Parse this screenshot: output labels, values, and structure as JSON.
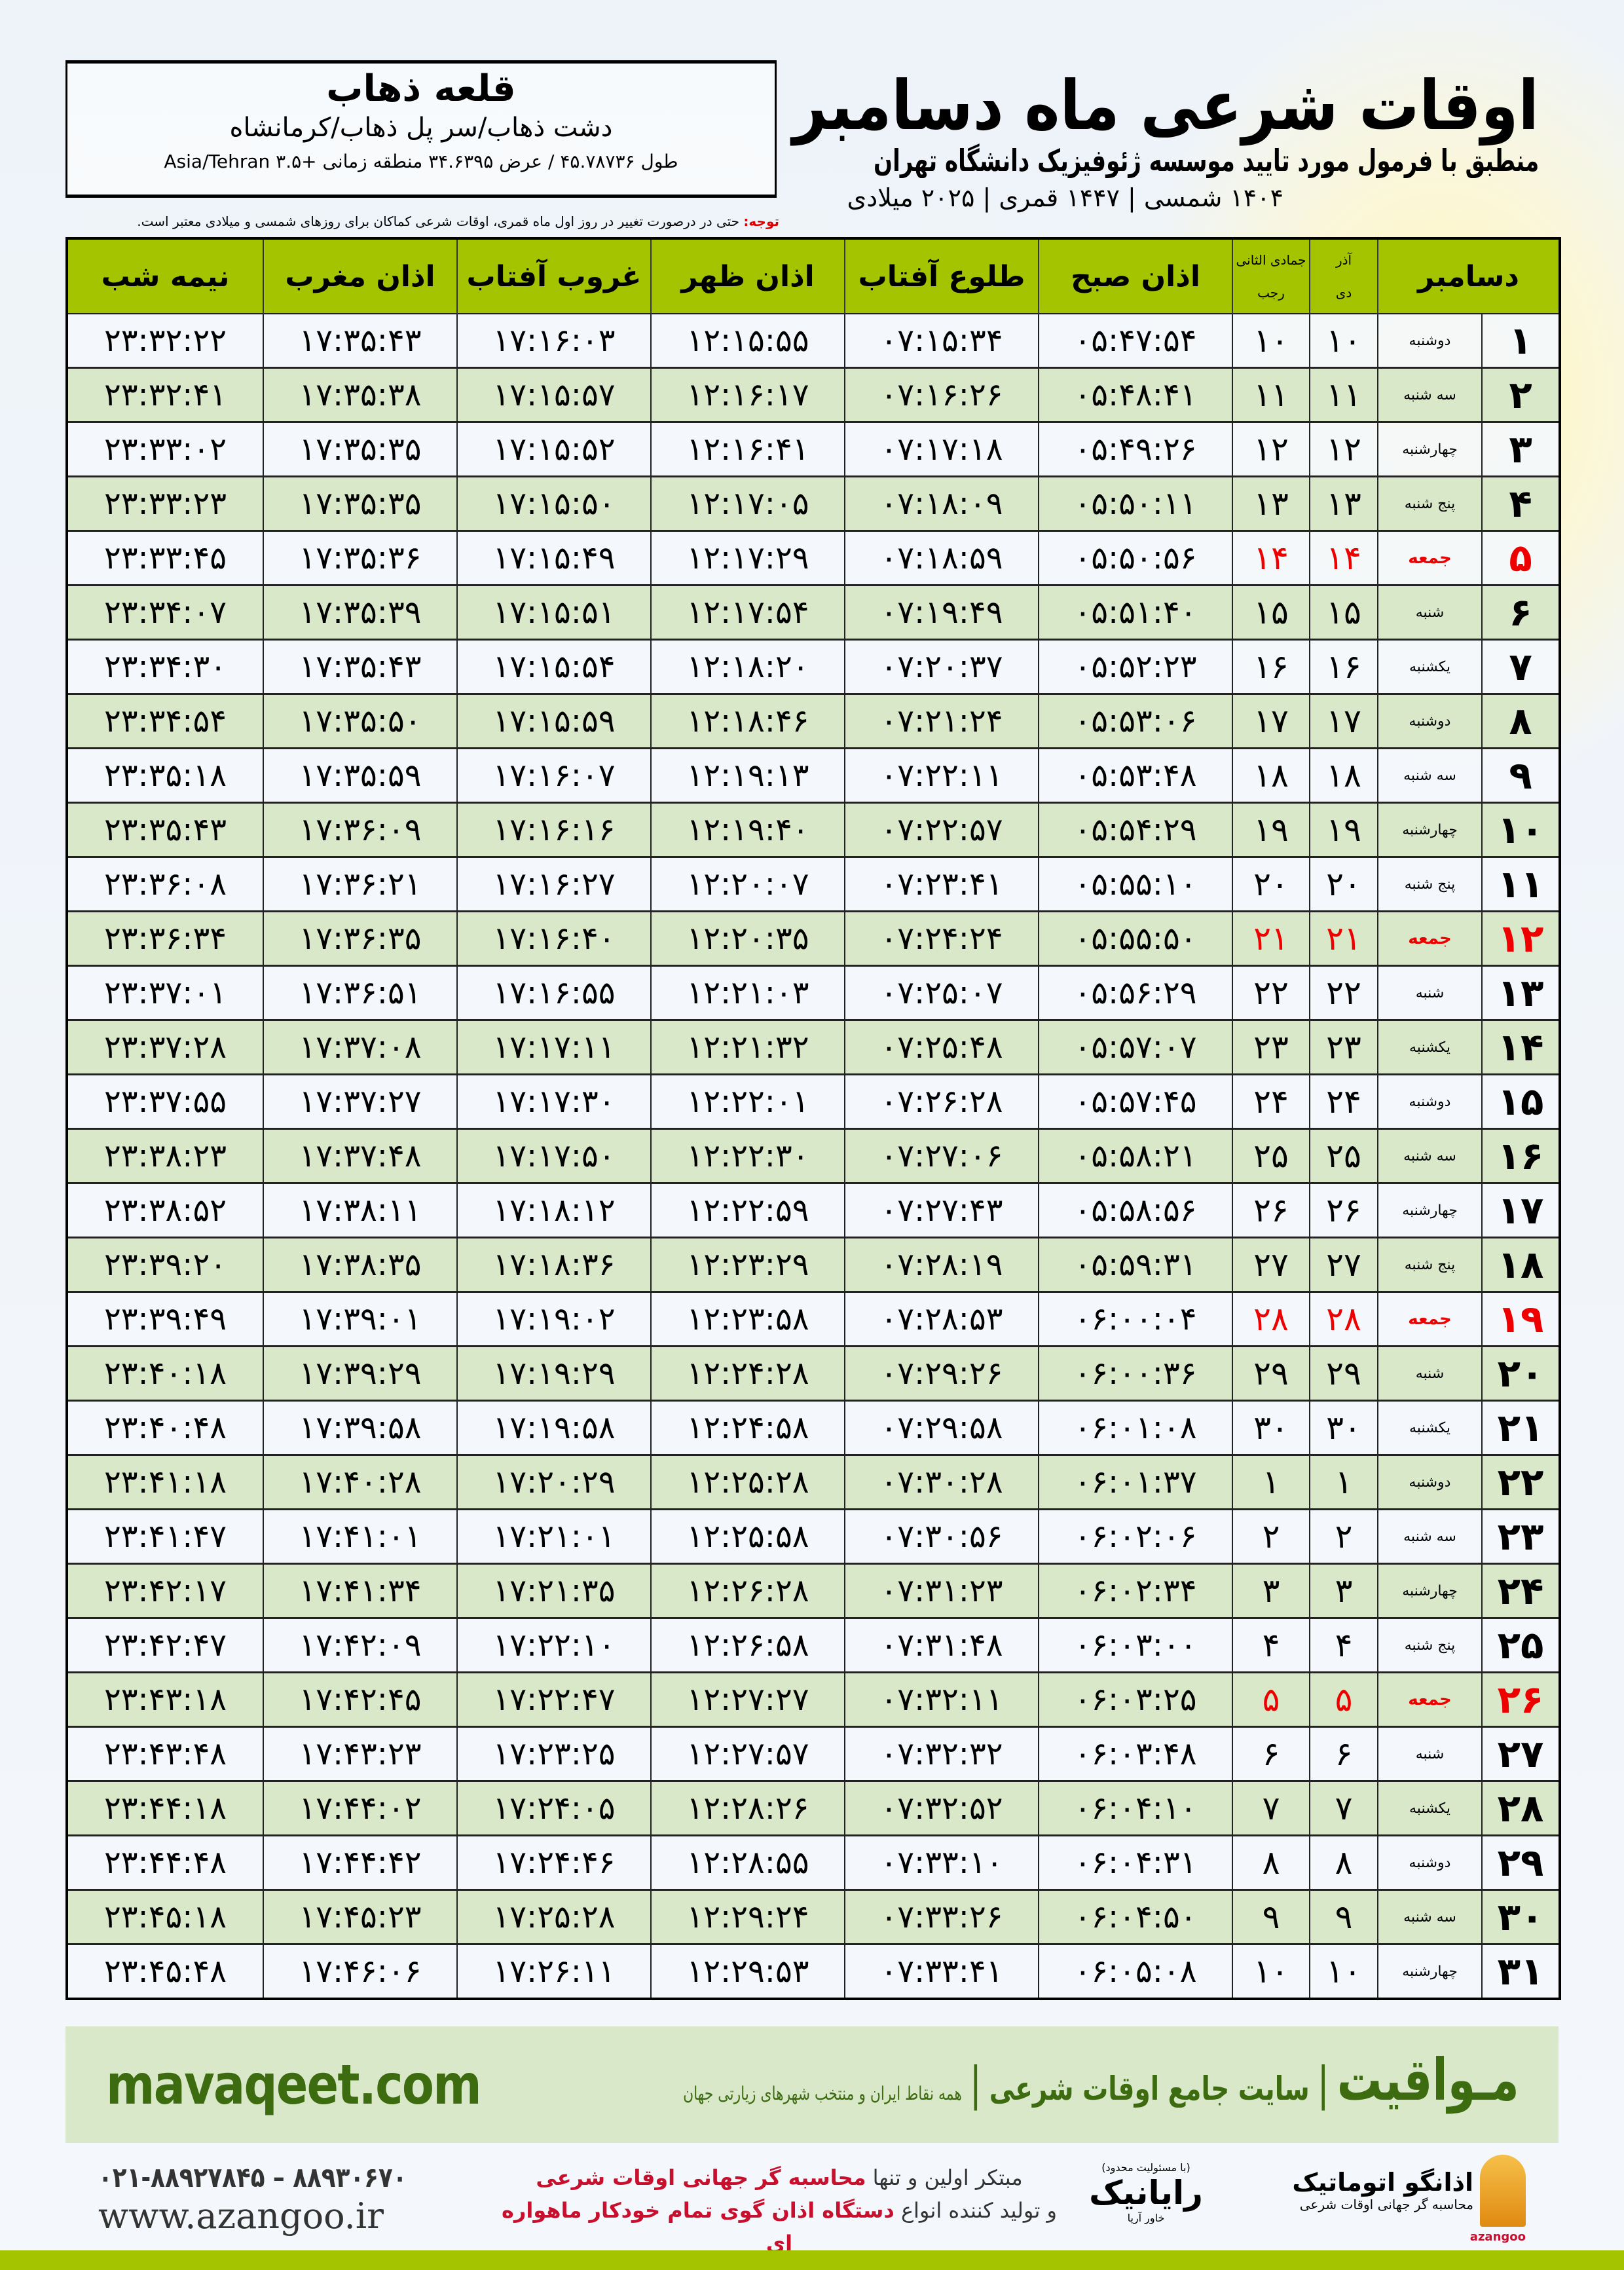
{
  "header": {
    "title": "اوقات شرعی ماه دسامبر",
    "subtitle": "منطبق با فرمول مورد تایید موسسه ژئوفیزیک دانشگاه تهران",
    "dateline": "۱۴۰۴ شمسی | ۱۴۴۷ قمری | ۲۰۲۵ میلادی"
  },
  "location": {
    "city": "قلعه ذهاب",
    "region": "دشت ذهاب/سر پل ذهاب/کرمانشاه",
    "coords": "طول ۴۵.۷۸۷۳۶ / عرض ۳۴.۶۳۹۵ منطقه زمانی +۳.۵ Asia/Tehran"
  },
  "note": {
    "label": "توجه:",
    "text": " حتی در درصورت تغییر در روز اول ماه قمری، اوقات شرعی کماکان برای روزهای شمسی و میلادی معتبر است."
  },
  "table": {
    "friday_label": "جمعه",
    "friday_color": "#e00000",
    "header_color": "#a4c400",
    "columns": {
      "month": "دسامبر",
      "shamsi_top": "آذر",
      "shamsi_bottom": "دی",
      "hijri_top": "جمادی الثانی",
      "hijri_bottom": "رجب",
      "fajr": "اذان صبح",
      "sunrise": "طلوع آفتاب",
      "dhuhr": "اذان ظهر",
      "sunset": "غروب آفتاب",
      "maghrib": "اذان مغرب",
      "midnight": "نیمه شب"
    },
    "rows": [
      [
        "۱",
        "دوشنبه",
        "۱۰",
        "۱۰",
        "۰۵:۴۷:۵۴",
        "۰۷:۱۵:۳۴",
        "۱۲:۱۵:۵۵",
        "۱۷:۱۶:۰۳",
        "۱۷:۳۵:۴۳",
        "۲۳:۳۲:۲۲"
      ],
      [
        "۲",
        "سه شنبه",
        "۱۱",
        "۱۱",
        "۰۵:۴۸:۴۱",
        "۰۷:۱۶:۲۶",
        "۱۲:۱۶:۱۷",
        "۱۷:۱۵:۵۷",
        "۱۷:۳۵:۳۸",
        "۲۳:۳۲:۴۱"
      ],
      [
        "۳",
        "چهارشنبه",
        "۱۲",
        "۱۲",
        "۰۵:۴۹:۲۶",
        "۰۷:۱۷:۱۸",
        "۱۲:۱۶:۴۱",
        "۱۷:۱۵:۵۲",
        "۱۷:۳۵:۳۵",
        "۲۳:۳۳:۰۲"
      ],
      [
        "۴",
        "پنج شنبه",
        "۱۳",
        "۱۳",
        "۰۵:۵۰:۱۱",
        "۰۷:۱۸:۰۹",
        "۱۲:۱۷:۰۵",
        "۱۷:۱۵:۵۰",
        "۱۷:۳۵:۳۵",
        "۲۳:۳۳:۲۳"
      ],
      [
        "۵",
        "جمعه",
        "۱۴",
        "۱۴",
        "۰۵:۵۰:۵۶",
        "۰۷:۱۸:۵۹",
        "۱۲:۱۷:۲۹",
        "۱۷:۱۵:۴۹",
        "۱۷:۳۵:۳۶",
        "۲۳:۳۳:۴۵"
      ],
      [
        "۶",
        "شنبه",
        "۱۵",
        "۱۵",
        "۰۵:۵۱:۴۰",
        "۰۷:۱۹:۴۹",
        "۱۲:۱۷:۵۴",
        "۱۷:۱۵:۵۱",
        "۱۷:۳۵:۳۹",
        "۲۳:۳۴:۰۷"
      ],
      [
        "۷",
        "یکشنبه",
        "۱۶",
        "۱۶",
        "۰۵:۵۲:۲۳",
        "۰۷:۲۰:۳۷",
        "۱۲:۱۸:۲۰",
        "۱۷:۱۵:۵۴",
        "۱۷:۳۵:۴۳",
        "۲۳:۳۴:۳۰"
      ],
      [
        "۸",
        "دوشنبه",
        "۱۷",
        "۱۷",
        "۰۵:۵۳:۰۶",
        "۰۷:۲۱:۲۴",
        "۱۲:۱۸:۴۶",
        "۱۷:۱۵:۵۹",
        "۱۷:۳۵:۵۰",
        "۲۳:۳۴:۵۴"
      ],
      [
        "۹",
        "سه شنبه",
        "۱۸",
        "۱۸",
        "۰۵:۵۳:۴۸",
        "۰۷:۲۲:۱۱",
        "۱۲:۱۹:۱۳",
        "۱۷:۱۶:۰۷",
        "۱۷:۳۵:۵۹",
        "۲۳:۳۵:۱۸"
      ],
      [
        "۱۰",
        "چهارشنبه",
        "۱۹",
        "۱۹",
        "۰۵:۵۴:۲۹",
        "۰۷:۲۲:۵۷",
        "۱۲:۱۹:۴۰",
        "۱۷:۱۶:۱۶",
        "۱۷:۳۶:۰۹",
        "۲۳:۳۵:۴۳"
      ],
      [
        "۱۱",
        "پنج شنبه",
        "۲۰",
        "۲۰",
        "۰۵:۵۵:۱۰",
        "۰۷:۲۳:۴۱",
        "۱۲:۲۰:۰۷",
        "۱۷:۱۶:۲۷",
        "۱۷:۳۶:۲۱",
        "۲۳:۳۶:۰۸"
      ],
      [
        "۱۲",
        "جمعه",
        "۲۱",
        "۲۱",
        "۰۵:۵۵:۵۰",
        "۰۷:۲۴:۲۴",
        "۱۲:۲۰:۳۵",
        "۱۷:۱۶:۴۰",
        "۱۷:۳۶:۳۵",
        "۲۳:۳۶:۳۴"
      ],
      [
        "۱۳",
        "شنبه",
        "۲۲",
        "۲۲",
        "۰۵:۵۶:۲۹",
        "۰۷:۲۵:۰۷",
        "۱۲:۲۱:۰۳",
        "۱۷:۱۶:۵۵",
        "۱۷:۳۶:۵۱",
        "۲۳:۳۷:۰۱"
      ],
      [
        "۱۴",
        "یکشنبه",
        "۲۳",
        "۲۳",
        "۰۵:۵۷:۰۷",
        "۰۷:۲۵:۴۸",
        "۱۲:۲۱:۳۲",
        "۱۷:۱۷:۱۱",
        "۱۷:۳۷:۰۸",
        "۲۳:۳۷:۲۸"
      ],
      [
        "۱۵",
        "دوشنبه",
        "۲۴",
        "۲۴",
        "۰۵:۵۷:۴۵",
        "۰۷:۲۶:۲۸",
        "۱۲:۲۲:۰۱",
        "۱۷:۱۷:۳۰",
        "۱۷:۳۷:۲۷",
        "۲۳:۳۷:۵۵"
      ],
      [
        "۱۶",
        "سه شنبه",
        "۲۵",
        "۲۵",
        "۰۵:۵۸:۲۱",
        "۰۷:۲۷:۰۶",
        "۱۲:۲۲:۳۰",
        "۱۷:۱۷:۵۰",
        "۱۷:۳۷:۴۸",
        "۲۳:۳۸:۲۳"
      ],
      [
        "۱۷",
        "چهارشنبه",
        "۲۶",
        "۲۶",
        "۰۵:۵۸:۵۶",
        "۰۷:۲۷:۴۳",
        "۱۲:۲۲:۵۹",
        "۱۷:۱۸:۱۲",
        "۱۷:۳۸:۱۱",
        "۲۳:۳۸:۵۲"
      ],
      [
        "۱۸",
        "پنج شنبه",
        "۲۷",
        "۲۷",
        "۰۵:۵۹:۳۱",
        "۰۷:۲۸:۱۹",
        "۱۲:۲۳:۲۹",
        "۱۷:۱۸:۳۶",
        "۱۷:۳۸:۳۵",
        "۲۳:۳۹:۲۰"
      ],
      [
        "۱۹",
        "جمعه",
        "۲۸",
        "۲۸",
        "۰۶:۰۰:۰۴",
        "۰۷:۲۸:۵۳",
        "۱۲:۲۳:۵۸",
        "۱۷:۱۹:۰۲",
        "۱۷:۳۹:۰۱",
        "۲۳:۳۹:۴۹"
      ],
      [
        "۲۰",
        "شنبه",
        "۲۹",
        "۲۹",
        "۰۶:۰۰:۳۶",
        "۰۷:۲۹:۲۶",
        "۱۲:۲۴:۲۸",
        "۱۷:۱۹:۲۹",
        "۱۷:۳۹:۲۹",
        "۲۳:۴۰:۱۸"
      ],
      [
        "۲۱",
        "یکشنبه",
        "۳۰",
        "۳۰",
        "۰۶:۰۱:۰۸",
        "۰۷:۲۹:۵۸",
        "۱۲:۲۴:۵۸",
        "۱۷:۱۹:۵۸",
        "۱۷:۳۹:۵۸",
        "۲۳:۴۰:۴۸"
      ],
      [
        "۲۲",
        "دوشنبه",
        "۱",
        "۱",
        "۰۶:۰۱:۳۷",
        "۰۷:۳۰:۲۸",
        "۱۲:۲۵:۲۸",
        "۱۷:۲۰:۲۹",
        "۱۷:۴۰:۲۸",
        "۲۳:۴۱:۱۸"
      ],
      [
        "۲۳",
        "سه شنبه",
        "۲",
        "۲",
        "۰۶:۰۲:۰۶",
        "۰۷:۳۰:۵۶",
        "۱۲:۲۵:۵۸",
        "۱۷:۲۱:۰۱",
        "۱۷:۴۱:۰۱",
        "۲۳:۴۱:۴۷"
      ],
      [
        "۲۴",
        "چهارشنبه",
        "۳",
        "۳",
        "۰۶:۰۲:۳۴",
        "۰۷:۳۱:۲۳",
        "۱۲:۲۶:۲۸",
        "۱۷:۲۱:۳۵",
        "۱۷:۴۱:۳۴",
        "۲۳:۴۲:۱۷"
      ],
      [
        "۲۵",
        "پنج شنبه",
        "۴",
        "۴",
        "۰۶:۰۳:۰۰",
        "۰۷:۳۱:۴۸",
        "۱۲:۲۶:۵۸",
        "۱۷:۲۲:۱۰",
        "۱۷:۴۲:۰۹",
        "۲۳:۴۲:۴۷"
      ],
      [
        "۲۶",
        "جمعه",
        "۵",
        "۵",
        "۰۶:۰۳:۲۵",
        "۰۷:۳۲:۱۱",
        "۱۲:۲۷:۲۷",
        "۱۷:۲۲:۴۷",
        "۱۷:۴۲:۴۵",
        "۲۳:۴۳:۱۸"
      ],
      [
        "۲۷",
        "شنبه",
        "۶",
        "۶",
        "۰۶:۰۳:۴۸",
        "۰۷:۳۲:۳۲",
        "۱۲:۲۷:۵۷",
        "۱۷:۲۳:۲۵",
        "۱۷:۴۳:۲۳",
        "۲۳:۴۳:۴۸"
      ],
      [
        "۲۸",
        "یکشنبه",
        "۷",
        "۷",
        "۰۶:۰۴:۱۰",
        "۰۷:۳۲:۵۲",
        "۱۲:۲۸:۲۶",
        "۱۷:۲۴:۰۵",
        "۱۷:۴۴:۰۲",
        "۲۳:۴۴:۱۸"
      ],
      [
        "۲۹",
        "دوشنبه",
        "۸",
        "۸",
        "۰۶:۰۴:۳۱",
        "۰۷:۳۳:۱۰",
        "۱۲:۲۸:۵۵",
        "۱۷:۲۴:۴۶",
        "۱۷:۴۴:۴۲",
        "۲۳:۴۴:۴۸"
      ],
      [
        "۳۰",
        "سه شنبه",
        "۹",
        "۹",
        "۰۶:۰۴:۵۰",
        "۰۷:۳۳:۲۶",
        "۱۲:۲۹:۲۴",
        "۱۷:۲۵:۲۸",
        "۱۷:۴۵:۲۳",
        "۲۳:۴۵:۱۸"
      ],
      [
        "۳۱",
        "چهارشنبه",
        "۱۰",
        "۱۰",
        "۰۶:۰۵:۰۸",
        "۰۷:۳۳:۴۱",
        "۱۲:۲۹:۵۳",
        "۱۷:۲۶:۱۱",
        "۱۷:۴۶:۰۶",
        "۲۳:۴۵:۴۸"
      ]
    ]
  },
  "band": {
    "brand": "مـواقیت",
    "tagline": "سایت جامع اوقات شرعی",
    "separator": "|",
    "subtag": "همه نقاط ایران و منتخب شهرهای زیارتی جهان",
    "site": "mavaqeet.com",
    "color": "#3d6b10"
  },
  "footer": {
    "phones": "۰۲۱-۸۸۹۲۷۸۴۵ – ۸۸۹۳۰۶۷۰",
    "website": "www.azangoo.ir",
    "promo_line1_a": "مبتکر اولین و تنها ",
    "promo_line1_b": "محاسبه گر جهانی اوقات شرعی",
    "promo_line2_a": "و تولید کننده انواع ",
    "promo_line2_b": "دستگاه اذان گوی تمام خودکار ماهواره ای",
    "raianik_note": "(با مسئولیت محدود)",
    "raianik_name": "رایانیک",
    "raianik_sub": "خاور آریا",
    "azangoo_name": "اذانگو اتوماتیک",
    "azangoo_sub": "محاسبه گر جهانی اوقات شرعی",
    "azangoo_en": "azangoo"
  }
}
